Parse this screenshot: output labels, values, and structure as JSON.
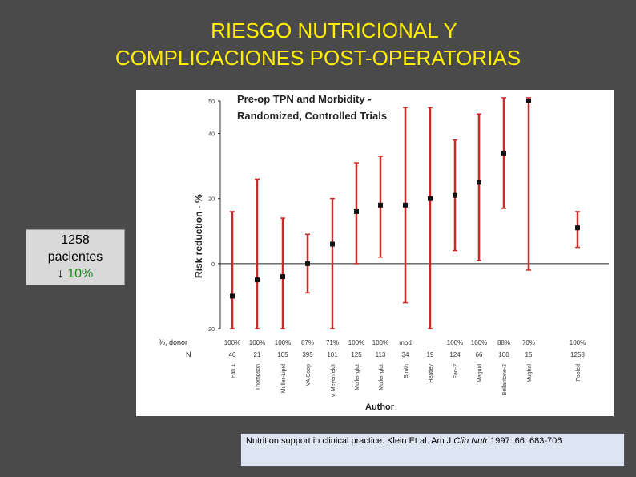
{
  "slide": {
    "title_line1": "RIESGO NUTRICIONAL Y",
    "title_line2": "COMPLICACIONES POST-OPERATORIAS"
  },
  "callout": {
    "count": "1258",
    "label": "pacientes",
    "arrow": "↓",
    "reduction": "10%"
  },
  "citation": {
    "text": "Nutrition support in clinical practice.  Klein Et al.  Am J ",
    "journal": "Clin Nutr",
    "ref": " 1997: 66: 683-706"
  },
  "chart_data": {
    "type": "scatter",
    "title_line1": "Pre-op TPN and Morbidity -",
    "title_line2": "Randomized, Controlled Trials",
    "xlabel": "Author",
    "ylabel": "Risk  reduction  -  %",
    "ylim": [
      -20,
      50
    ],
    "yticks": [
      -20,
      0,
      20,
      40,
      50
    ],
    "row_label_pct": "%, donor",
    "row_label_n": "N",
    "authors": [
      "Fan 1",
      "Thompson",
      "Muller-Lipid",
      "VA Coop",
      "v. Meyenfeldt",
      "Muller-glut",
      "Muller-glut",
      "Smith",
      "Heatley",
      "Fan-2",
      "Maguid",
      "Bellantone-2",
      "Mughal",
      "Pooled"
    ],
    "pct_donor": [
      "100%",
      "100%",
      "100%",
      "87%",
      "71%",
      "100%",
      "100%",
      "mod",
      "",
      "100%",
      "100%",
      "88%",
      "70%",
      "100%"
    ],
    "n": [
      "40",
      "21",
      "105",
      "395",
      "101",
      "125",
      "113",
      "34",
      "19",
      "124",
      "66",
      "100",
      "15",
      "1258"
    ],
    "estimates": [
      -10,
      -5,
      -4,
      0,
      6,
      16,
      18,
      18,
      20,
      21,
      25,
      34,
      50,
      11
    ],
    "lower": [
      -20,
      -20,
      -20,
      -9,
      -20,
      0,
      2,
      -12,
      -20,
      4,
      1,
      17,
      -2,
      5
    ],
    "upper": [
      16,
      26,
      14,
      9,
      20,
      31,
      33,
      48,
      48,
      38,
      46,
      51,
      51,
      16
    ]
  }
}
